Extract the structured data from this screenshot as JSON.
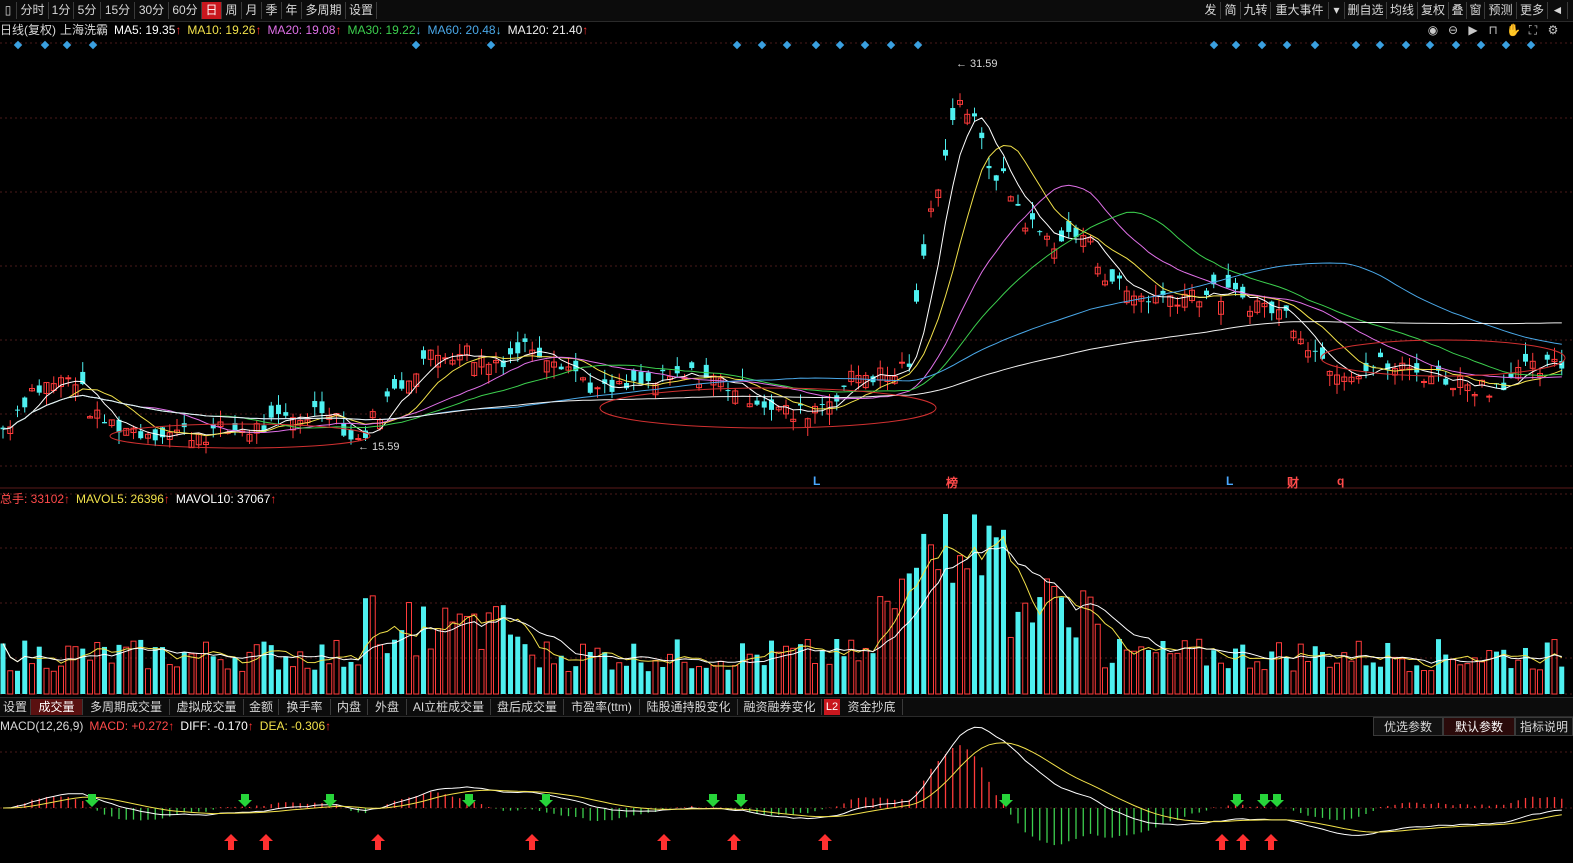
{
  "toolbar": {
    "left": [
      "分时",
      "1分",
      "5分",
      "15分",
      "30分",
      "60分",
      "日",
      "周",
      "月",
      "季",
      "年",
      "多周期",
      "设置"
    ],
    "right": [
      "发",
      "简",
      "九转",
      "重大事件",
      "▾",
      "删自选",
      "均线",
      "复权",
      "叠",
      "窗",
      "预测",
      "更多",
      "◄"
    ]
  },
  "ma_line": {
    "prefix": "日线(复权)",
    "stock": "上海洗霸",
    "items": [
      {
        "text": "MA5: 19.35",
        "arrow": "↑",
        "color": "#ffffff"
      },
      {
        "text": "MA10: 19.26",
        "arrow": "↑",
        "color": "#f2e14a"
      },
      {
        "text": "MA20: 19.08",
        "arrow": "↑",
        "color": "#e070e8"
      },
      {
        "text": "MA30: 19.22",
        "arrow": "↓",
        "color": "#3ccf4e"
      },
      {
        "text": "MA60: 20.48",
        "arrow": "↓",
        "color": "#4aa8e8"
      },
      {
        "text": "MA120: 21.40",
        "arrow": "↑",
        "color": "#f0f0f0"
      }
    ]
  },
  "price_labels": {
    "high": "31.59",
    "low": "15.59"
  },
  "events": [
    {
      "label": "L",
      "color": "#4aa8ff"
    },
    {
      "label": "榜",
      "color": "#ff4a4a"
    },
    {
      "label": "L",
      "color": "#4aa8ff"
    },
    {
      "label": "财",
      "color": "#ff4a4a"
    },
    {
      "label": "q",
      "color": "#ff4a4a"
    }
  ],
  "vol_line": {
    "items": [
      {
        "text": "总手: 33102",
        "arrow": "↑",
        "color": "#ff4a4a"
      },
      {
        "text": "MAVOL5: 26396",
        "arrow": "↑",
        "color": "#f2e14a"
      },
      {
        "text": "MAVOL10: 37067",
        "arrow": "↑",
        "color": "#ffffff"
      }
    ]
  },
  "indicator_tabs": [
    "设置",
    "成交量",
    "多周期成交量",
    "虚拟成交量",
    "金额",
    "换手率",
    "内盘",
    "外盘",
    "AI立桩成交量",
    "盘后成交量",
    "市盈率(ttm)",
    "陆股通持股变化",
    "融资融券变化",
    "L2",
    "资金抄底"
  ],
  "macd_line": {
    "items": [
      {
        "text": "MACD(12,26,9)",
        "arrow": "",
        "color": "#d8d8d8"
      },
      {
        "text": "MACD: +0.272",
        "arrow": "↑",
        "color": "#ff4a4a"
      },
      {
        "text": "DIFF: -0.170",
        "arrow": "↑",
        "color": "#ffffff"
      },
      {
        "text": "DEA: -0.306",
        "arrow": "↑",
        "color": "#f2e14a"
      }
    ]
  },
  "macd_buttons": [
    "优选参数",
    "默认参数",
    "指标说明"
  ],
  "colors": {
    "up": "#ff3b3b",
    "down": "#4ef0f0",
    "grid": "#4a1a1a",
    "accent": "#c8171e"
  },
  "chart_data": {
    "type": "candlestick",
    "y_range": [
      15.0,
      32.5
    ],
    "ma_legend": [
      "MA5",
      "MA10",
      "MA20",
      "MA30",
      "MA60",
      "MA120"
    ]
  }
}
